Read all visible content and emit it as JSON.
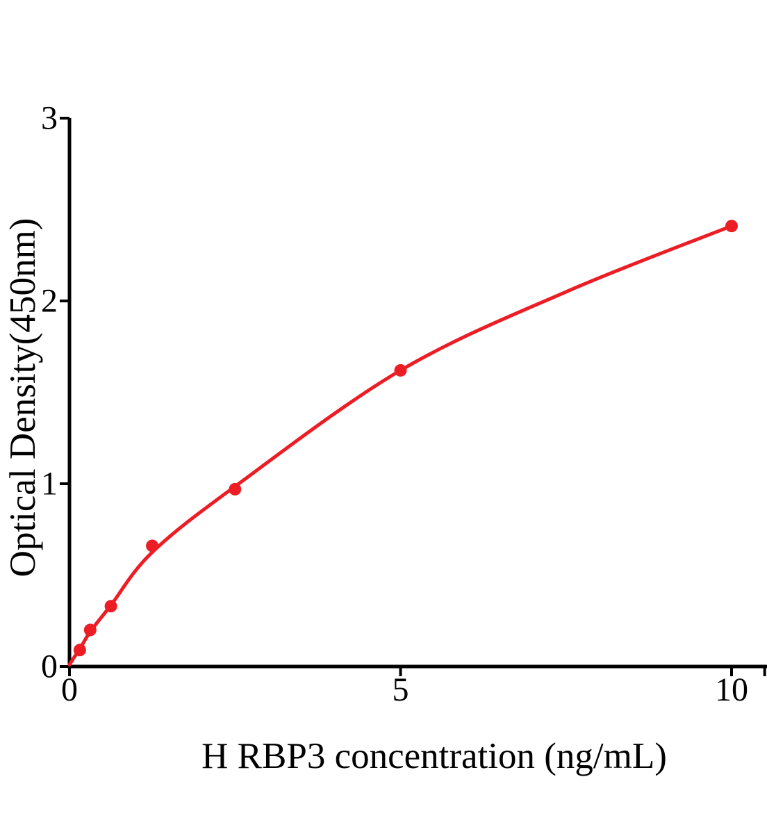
{
  "figure": {
    "background": "#FFFFFF",
    "text_color": "#000000",
    "axis_color": "#000000",
    "accent_color": "#EC1D24"
  },
  "chart_data": {
    "type": "scatter",
    "title": "",
    "xlabel": "H RBP3 concentration (ng/mL)",
    "ylabel": "Optical Density(450nm)",
    "xlim": [
      0,
      10.5
    ],
    "ylim": [
      0,
      3
    ],
    "grid": false,
    "legend_position": "none",
    "x_ticks": [
      {
        "value": 0,
        "label": "0"
      },
      {
        "value": 5,
        "label": "5"
      },
      {
        "value": 10,
        "label": "10"
      },
      {
        "value": 10.5,
        "label": ""
      }
    ],
    "y_ticks": [
      {
        "value": 0,
        "label": "0"
      },
      {
        "value": 1,
        "label": "1"
      },
      {
        "value": 2,
        "label": "2"
      },
      {
        "value": 3,
        "label": "3"
      }
    ],
    "series": [
      {
        "color": "#EC1D24",
        "marker": "circle",
        "points": [
          [
            0.156,
            0.09
          ],
          [
            0.313,
            0.2
          ],
          [
            0.625,
            0.33
          ],
          [
            1.25,
            0.66
          ],
          [
            2.5,
            0.97
          ],
          [
            5,
            1.62
          ],
          [
            10,
            2.41
          ]
        ],
        "fit_curve": [
          [
            0,
            0.01
          ],
          [
            0.08,
            0.055
          ],
          [
            0.156,
            0.095
          ],
          [
            0.313,
            0.19
          ],
          [
            0.625,
            0.335
          ],
          [
            1.25,
            0.625
          ],
          [
            2.5,
            0.985
          ],
          [
            5,
            1.62
          ],
          [
            7.5,
            2.05
          ],
          [
            10,
            2.41
          ]
        ]
      }
    ]
  }
}
